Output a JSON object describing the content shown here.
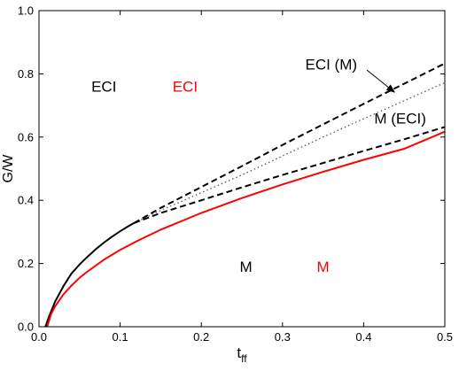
{
  "chart_data": {
    "type": "line",
    "title": "",
    "xlabel": "t",
    "xlabel_subscript": "ff",
    "ylabel": "G/W",
    "xlim": [
      0,
      0.5
    ],
    "ylim": [
      0,
      1.0
    ],
    "xticks": [
      "0.0",
      "0.1",
      "0.2",
      "0.3",
      "0.4",
      "0.5"
    ],
    "yticks": [
      "0.0",
      "0.2",
      "0.4",
      "0.6",
      "0.8",
      "1.0"
    ],
    "grid": false,
    "legend": "none",
    "series": [
      {
        "style": "solid",
        "color": "#000000",
        "x": [
          0.008,
          0.012,
          0.02,
          0.03,
          0.04,
          0.05,
          0.06,
          0.07,
          0.08,
          0.09,
          0.1,
          0.11,
          0.117
        ],
        "y": [
          0.0,
          0.03,
          0.08,
          0.128,
          0.168,
          0.197,
          0.222,
          0.245,
          0.266,
          0.285,
          0.302,
          0.318,
          0.328
        ]
      },
      {
        "style": "solid",
        "color": "#ff0000",
        "x": [
          0.01,
          0.015,
          0.02,
          0.03,
          0.04,
          0.05,
          0.06,
          0.08,
          0.1,
          0.12,
          0.15,
          0.2,
          0.25,
          0.3,
          0.35,
          0.4,
          0.45,
          0.5
        ],
        "y": [
          0.0,
          0.04,
          0.065,
          0.102,
          0.13,
          0.155,
          0.175,
          0.212,
          0.243,
          0.27,
          0.307,
          0.36,
          0.407,
          0.45,
          0.49,
          0.528,
          0.563,
          0.617
        ]
      },
      {
        "style": "dashed",
        "color": "#000000",
        "x": [
          0.117,
          0.15,
          0.2,
          0.25,
          0.3,
          0.35,
          0.4,
          0.45,
          0.5
        ],
        "y": [
          0.328,
          0.376,
          0.442,
          0.508,
          0.575,
          0.64,
          0.705,
          0.769,
          0.833
        ]
      },
      {
        "style": "dotted",
        "color": "#555555",
        "x": [
          0.117,
          0.15,
          0.2,
          0.25,
          0.3,
          0.35,
          0.4,
          0.45,
          0.5
        ],
        "y": [
          0.328,
          0.368,
          0.424,
          0.48,
          0.54,
          0.6,
          0.658,
          0.715,
          0.772
        ]
      },
      {
        "style": "dashed",
        "color": "#000000",
        "x": [
          0.117,
          0.15,
          0.2,
          0.25,
          0.3,
          0.35,
          0.4,
          0.45,
          0.5
        ],
        "y": [
          0.328,
          0.36,
          0.4,
          0.441,
          0.48,
          0.518,
          0.556,
          0.593,
          0.632
        ]
      }
    ],
    "annotations": [
      {
        "text": "ECI",
        "x": 0.08,
        "y": 0.76,
        "color": "#000000"
      },
      {
        "text": "ECI",
        "x": 0.18,
        "y": 0.76,
        "color": "#ff0000"
      },
      {
        "text": "M",
        "x": 0.255,
        "y": 0.19,
        "color": "#000000"
      },
      {
        "text": "M",
        "x": 0.35,
        "y": 0.19,
        "color": "#ff0000"
      },
      {
        "text": "ECI (M)",
        "x": 0.36,
        "y": 0.83,
        "color": "#000000"
      },
      {
        "text": "M (ECI)",
        "x": 0.445,
        "y": 0.66,
        "color": "#000000"
      }
    ],
    "arrow": {
      "from": [
        0.404,
        0.812
      ],
      "to": [
        0.438,
        0.742
      ]
    }
  }
}
